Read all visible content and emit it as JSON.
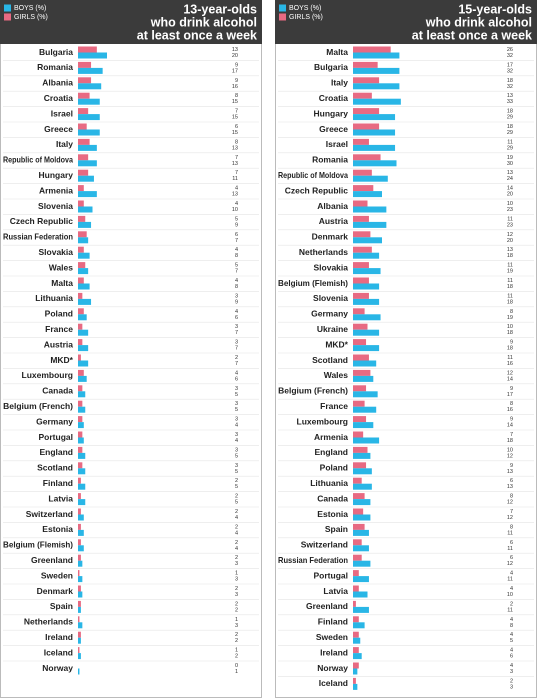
{
  "chart_data": [
    {
      "type": "bar",
      "orientation": "horizontal",
      "title": [
        "13-year-olds",
        "who drink alcohol",
        "at least once a week"
      ],
      "categories": [
        "Bulgaria",
        "Romania",
        "Albania",
        "Croatia",
        "Israel",
        "Greece",
        "Italy",
        "Republic of Moldova",
        "Hungary",
        "Armenia",
        "Slovenia",
        "Czech Republic",
        "Russian Federation",
        "Slovakia",
        "Wales",
        "Malta",
        "Lithuania",
        "Poland",
        "France",
        "Austria",
        "MKD*",
        "Luxembourg",
        "Canada",
        "Belgium (French)",
        "Germany",
        "Portugal",
        "England",
        "Scotland",
        "Finland",
        "Latvia",
        "Switzerland",
        "Estonia",
        "Belgium (Flemish)",
        "Greenland",
        "Sweden",
        "Denmark",
        "Spain",
        "Netherlands",
        "Ireland",
        "Iceland",
        "Norway"
      ],
      "series": [
        {
          "name": "BOYS (%)",
          "color": "#29b6e6",
          "values": [
            20,
            17,
            16,
            15,
            15,
            15,
            13,
            13,
            11,
            13,
            10,
            9,
            7,
            8,
            7,
            8,
            9,
            6,
            7,
            7,
            7,
            6,
            5,
            5,
            4,
            4,
            5,
            5,
            5,
            5,
            4,
            4,
            4,
            3,
            3,
            3,
            2,
            3,
            2,
            2,
            1
          ]
        },
        {
          "name": "GIRLS (%)",
          "color": "#e86a82",
          "values": [
            13,
            9,
            9,
            8,
            7,
            6,
            8,
            7,
            7,
            4,
            4,
            5,
            6,
            4,
            5,
            4,
            3,
            4,
            3,
            3,
            2,
            4,
            3,
            3,
            3,
            3,
            3,
            3,
            2,
            2,
            2,
            2,
            2,
            2,
            1,
            2,
            2,
            1,
            2,
            1,
            0
          ]
        }
      ]
    },
    {
      "type": "bar",
      "orientation": "horizontal",
      "title": [
        "15-year-olds",
        "who drink alcohol",
        "at least once a week"
      ],
      "categories": [
        "Malta",
        "Bulgaria",
        "Italy",
        "Croatia",
        "Hungary",
        "Greece",
        "Israel",
        "Romania",
        "Republic of Moldova",
        "Czech Republic",
        "Albania",
        "Austria",
        "Denmark",
        "Netherlands",
        "Slovakia",
        "Belgium (Flemish)",
        "Slovenia",
        "Germany",
        "Ukraine",
        "MKD*",
        "Scotland",
        "Wales",
        "Belgium (French)",
        "France",
        "Luxembourg",
        "Armenia",
        "England",
        "Poland",
        "Lithuania",
        "Canada",
        "Estonia",
        "Spain",
        "Switzerland",
        "Russian Federation",
        "Portugal",
        "Latvia",
        "Greenland",
        "Finland",
        "Sweden",
        "Ireland",
        "Norway",
        "Iceland"
      ],
      "series": [
        {
          "name": "BOYS (%)",
          "color": "#29b6e6",
          "values": [
            32,
            32,
            32,
            33,
            29,
            29,
            29,
            30,
            24,
            20,
            23,
            23,
            20,
            18,
            19,
            18,
            18,
            19,
            18,
            18,
            16,
            14,
            17,
            16,
            14,
            18,
            12,
            13,
            13,
            12,
            12,
            11,
            11,
            12,
            11,
            10,
            11,
            8,
            5,
            6,
            3,
            3
          ]
        },
        {
          "name": "GIRLS (%)",
          "color": "#e86a82",
          "values": [
            26,
            17,
            18,
            13,
            18,
            18,
            11,
            19,
            13,
            14,
            10,
            11,
            12,
            13,
            11,
            11,
            11,
            8,
            10,
            9,
            11,
            12,
            9,
            8,
            9,
            7,
            10,
            9,
            6,
            8,
            7,
            8,
            6,
            6,
            4,
            4,
            2,
            4,
            4,
            4,
            4,
            2
          ]
        }
      ]
    }
  ]
}
